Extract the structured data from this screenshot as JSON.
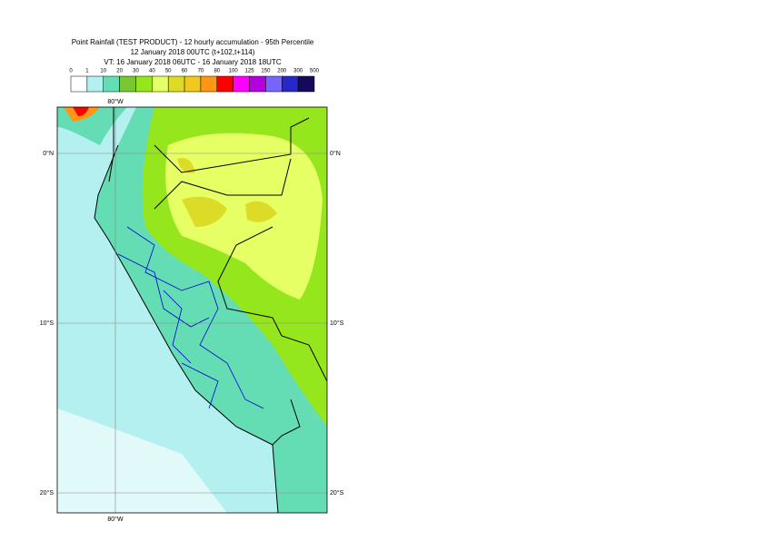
{
  "header": {
    "title": "Point Rainfall (TEST PRODUCT) - 12 hourly accumulation - 95th Percentile",
    "base_time": "12 January 2018 00UTC (t+102,t+114)",
    "valid_time": "VT: 16 January 2018 06UTC - 16 January 2018 18UTC"
  },
  "legend": {
    "labels": [
      "0",
      "1",
      "10",
      "20",
      "30",
      "40",
      "50",
      "60",
      "70",
      "80",
      "100",
      "125",
      "150",
      "200",
      "300",
      "500"
    ],
    "colors": [
      "#ffffff",
      "#b4f0f0",
      "#64dcb4",
      "#78c832",
      "#96e61e",
      "#e6ff64",
      "#dcdc28",
      "#f0c81e",
      "#ff9614",
      "#ff0000",
      "#ff00ff",
      "#b400dc",
      "#7864ff",
      "#2828c8",
      "#140a5a"
    ]
  },
  "map": {
    "lon_labels": [
      "80°W",
      "80°W"
    ],
    "lat_labels_left": [
      "0°N",
      "10°S",
      "20°S"
    ],
    "lat_labels_right": [
      "0°N",
      "10°S",
      "20°S"
    ]
  }
}
